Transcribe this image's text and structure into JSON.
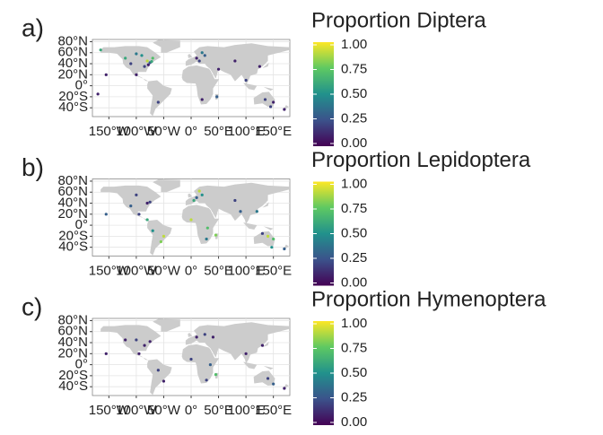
{
  "chart_data": [
    {
      "type": "map",
      "label": "a)",
      "title": "Proportion Diptera",
      "colormap": "viridis",
      "xlim": [
        -180,
        180
      ],
      "ylim": [
        -56,
        84
      ],
      "xticks": [
        {
          "value": -150,
          "label": "150°W"
        },
        {
          "value": -100,
          "label": "100°W"
        },
        {
          "value": -50,
          "label": "50°W"
        },
        {
          "value": 0,
          "label": "0°"
        },
        {
          "value": 50,
          "label": "50°E"
        },
        {
          "value": 100,
          "label": "100°E"
        },
        {
          "value": 150,
          "label": "150°E"
        }
      ],
      "yticks": [
        {
          "value": -40,
          "label": "40°S"
        },
        {
          "value": -20,
          "label": "20°S"
        },
        {
          "value": 0,
          "label": "0°"
        },
        {
          "value": 20,
          "label": "20°N"
        },
        {
          "value": 40,
          "label": "40°N"
        },
        {
          "value": 60,
          "label": "60°N"
        },
        {
          "value": 80,
          "label": "80°N"
        }
      ],
      "colorbar": {
        "limits": [
          0,
          1
        ],
        "ticks": [
          {
            "value": 0,
            "label": "0.00"
          },
          {
            "value": 0.25,
            "label": "0.25"
          },
          {
            "value": 0.5,
            "label": "0.50"
          },
          {
            "value": 0.75,
            "label": "0.75"
          },
          {
            "value": 1,
            "label": "1.00"
          }
        ]
      },
      "points": {
        "lon": [
          -120,
          -100,
          -90,
          -80,
          -75,
          -72,
          -85,
          -78,
          -110,
          -70,
          -155,
          -165,
          -100,
          -60,
          10,
          20,
          25,
          15,
          50,
          20,
          47,
          80,
          135,
          150,
          145,
          125,
          170,
          100,
          -170
        ],
        "lat": [
          50,
          58,
          55,
          45,
          42,
          44,
          35,
          38,
          40,
          50,
          20,
          65,
          20,
          -30,
          50,
          60,
          55,
          45,
          30,
          -25,
          -20,
          45,
          -25,
          -30,
          -38,
          35,
          -43,
          10,
          -15
        ],
        "values": [
          0.6,
          0.4,
          0.5,
          0.9,
          0.3,
          0.6,
          0.2,
          0.1,
          0.2,
          0.7,
          0.1,
          0.6,
          0.1,
          0.2,
          0.1,
          0.4,
          0.3,
          0.2,
          0.1,
          0.1,
          0.3,
          0.1,
          0.2,
          0.1,
          0.2,
          0.1,
          0.1,
          0.2,
          0.1
        ]
      }
    },
    {
      "type": "map",
      "label": "b)",
      "title": "Proportion Lepidoptera",
      "colormap": "viridis",
      "xlim": [
        -180,
        180
      ],
      "ylim": [
        -56,
        84
      ],
      "xticks": [
        {
          "value": -150,
          "label": "150°W"
        },
        {
          "value": -100,
          "label": "100°W"
        },
        {
          "value": -50,
          "label": "50°W"
        },
        {
          "value": 0,
          "label": "0°"
        },
        {
          "value": 50,
          "label": "50°E"
        },
        {
          "value": 100,
          "label": "100°E"
        },
        {
          "value": 150,
          "label": "150°E"
        }
      ],
      "yticks": [
        {
          "value": -40,
          "label": "40°S"
        },
        {
          "value": -20,
          "label": "20°S"
        },
        {
          "value": 0,
          "label": "0°"
        },
        {
          "value": 20,
          "label": "20°N"
        },
        {
          "value": 40,
          "label": "40°N"
        },
        {
          "value": 60,
          "label": "60°N"
        },
        {
          "value": 80,
          "label": "80°N"
        }
      ],
      "colorbar": {
        "limits": [
          0,
          1
        ],
        "ticks": [
          {
            "value": 0,
            "label": "0.00"
          },
          {
            "value": 0.25,
            "label": "0.25"
          },
          {
            "value": 0.5,
            "label": "0.50"
          },
          {
            "value": 0.75,
            "label": "0.75"
          },
          {
            "value": 1,
            "label": "1.00"
          }
        ]
      },
      "points": {
        "lon": [
          -75,
          -80,
          -100,
          -110,
          -95,
          -80,
          -70,
          -50,
          -55,
          10,
          20,
          15,
          5,
          0,
          30,
          28,
          45,
          90,
          120,
          140,
          150,
          130,
          147,
          80,
          -155,
          170
        ],
        "lat": [
          42,
          40,
          55,
          35,
          20,
          10,
          -10,
          -20,
          -30,
          50,
          55,
          62,
          45,
          10,
          -5,
          -25,
          -18,
          25,
          25,
          -20,
          -25,
          -15,
          -40,
          45,
          20,
          -43
        ],
        "values": [
          0.2,
          0.1,
          0.2,
          0.3,
          0.2,
          0.6,
          0.5,
          0.9,
          0.8,
          0.3,
          0.5,
          0.9,
          0.6,
          0.9,
          0.7,
          0.4,
          0.8,
          0.3,
          0.4,
          0.9,
          0.7,
          0.2,
          0.5,
          0.2,
          0.3,
          0.3
        ]
      }
    },
    {
      "type": "map",
      "label": "c)",
      "title": "Proportion Hymenoptera",
      "colormap": "viridis",
      "xlim": [
        -180,
        180
      ],
      "ylim": [
        -56,
        84
      ],
      "xticks": [
        {
          "value": -150,
          "label": "150°W"
        },
        {
          "value": -100,
          "label": "100°W"
        },
        {
          "value": -50,
          "label": "50°W"
        },
        {
          "value": 0,
          "label": "0°"
        },
        {
          "value": 50,
          "label": "50°E"
        },
        {
          "value": 100,
          "label": "100°E"
        },
        {
          "value": 150,
          "label": "150°E"
        }
      ],
      "yticks": [
        {
          "value": -40,
          "label": "40°S"
        },
        {
          "value": -20,
          "label": "20°S"
        },
        {
          "value": 0,
          "label": "0°"
        },
        {
          "value": 20,
          "label": "20°N"
        },
        {
          "value": 40,
          "label": "40°N"
        },
        {
          "value": 60,
          "label": "60°N"
        },
        {
          "value": 80,
          "label": "80°N"
        }
      ],
      "colorbar": {
        "limits": [
          0,
          1
        ],
        "ticks": [
          {
            "value": 0,
            "label": "0.00"
          },
          {
            "value": 0.25,
            "label": "0.25"
          },
          {
            "value": 0.5,
            "label": "0.50"
          },
          {
            "value": 0.75,
            "label": "0.75"
          },
          {
            "value": 1,
            "label": "1.00"
          }
        ]
      },
      "points": {
        "lon": [
          -75,
          -85,
          -100,
          -120,
          -95,
          -60,
          -50,
          10,
          25,
          40,
          35,
          45,
          28,
          100,
          130,
          140,
          150,
          170,
          -155,
          0
        ],
        "lat": [
          42,
          35,
          45,
          45,
          20,
          -10,
          -30,
          50,
          55,
          50,
          0,
          -18,
          -28,
          20,
          35,
          -25,
          -35,
          -43,
          20,
          10
        ],
        "values": [
          0.1,
          0.1,
          0.2,
          0.1,
          0.1,
          0.2,
          0.1,
          0.1,
          0.2,
          0.1,
          0.3,
          0.7,
          0.2,
          0.1,
          0.1,
          0.2,
          0.3,
          0.1,
          0.1,
          0.2
        ]
      }
    }
  ]
}
